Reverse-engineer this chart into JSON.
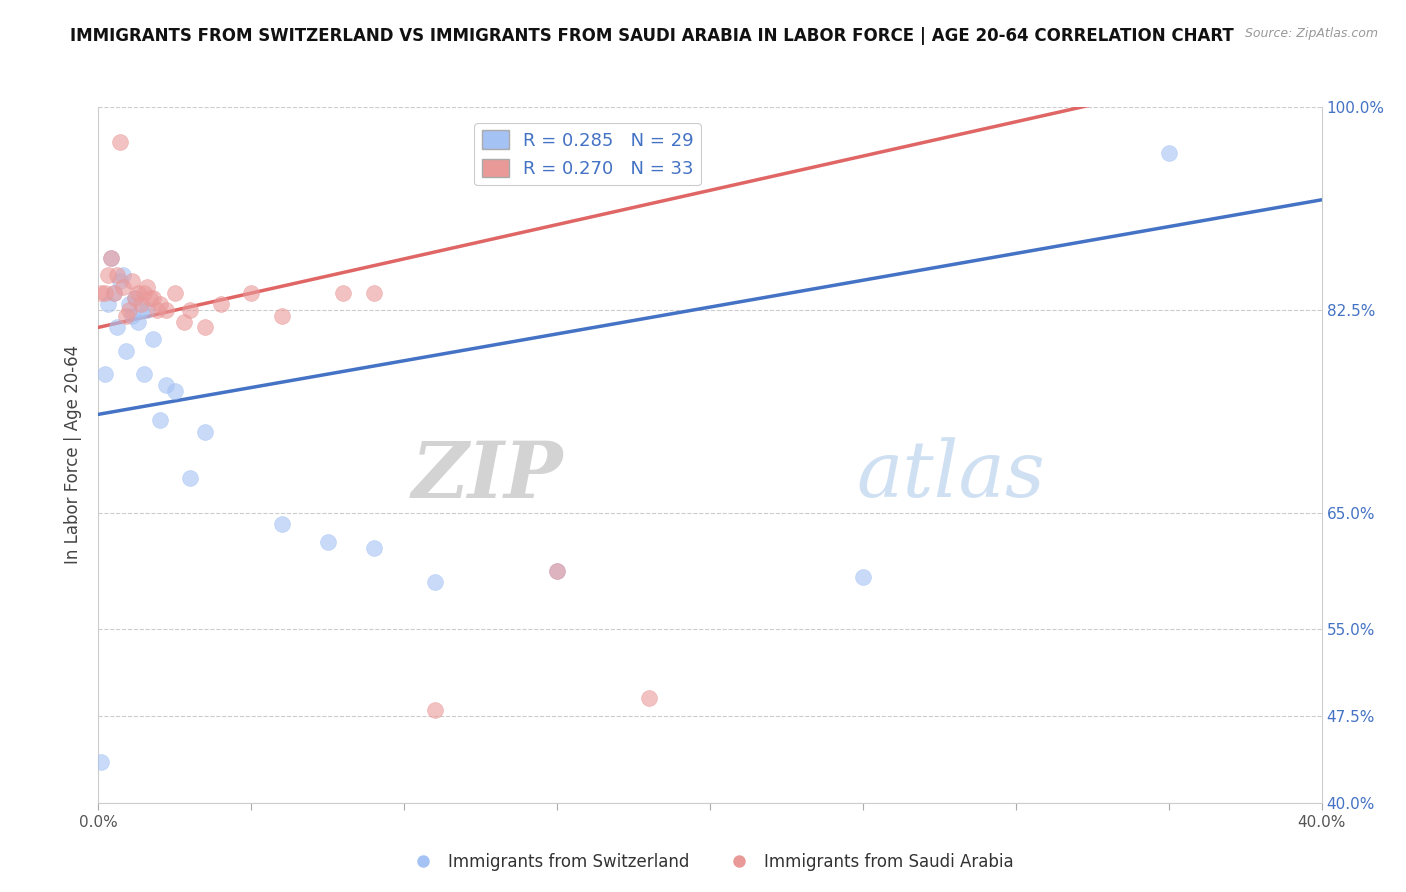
{
  "title": "IMMIGRANTS FROM SWITZERLAND VS IMMIGRANTS FROM SAUDI ARABIA IN LABOR FORCE | AGE 20-64 CORRELATION CHART",
  "source": "Source: ZipAtlas.com",
  "ylabel": "In Labor Force | Age 20-64",
  "xlim": [
    0.0,
    0.4
  ],
  "ylim": [
    0.4,
    1.0
  ],
  "ytick_vals": [
    0.4,
    0.475,
    0.55,
    0.65,
    0.825,
    1.0
  ],
  "ytick_labels": [
    "40.0%",
    "47.5%",
    "55.0%",
    "65.0%",
    "82.5%",
    "100.0%"
  ],
  "xtick_vals": [
    0.0,
    0.05,
    0.1,
    0.15,
    0.2,
    0.25,
    0.3,
    0.35,
    0.4
  ],
  "xtick_labels": [
    "0.0%",
    "",
    "",
    "",
    "",
    "",
    "",
    "",
    "40.0%"
  ],
  "switzerland_color": "#a4c2f4",
  "saudi_color": "#ea9999",
  "switzerland_line_color": "#4472c4",
  "saudi_line_color": "#e06666",
  "switzerland_R": 0.285,
  "switzerland_N": 29,
  "saudi_R": 0.27,
  "saudi_N": 33,
  "watermark_zip": "ZIP",
  "watermark_atlas": "atlas",
  "grid_color": "#cccccc",
  "background_color": "#ffffff",
  "title_fontsize": 12,
  "axis_label_fontsize": 12,
  "tick_fontsize": 11,
  "legend_fontsize": 13,
  "switzerland_x": [
    0.001,
    0.002,
    0.003,
    0.004,
    0.005,
    0.006,
    0.007,
    0.008,
    0.009,
    0.01,
    0.011,
    0.012,
    0.013,
    0.014,
    0.015,
    0.016,
    0.018,
    0.02,
    0.022,
    0.025,
    0.03,
    0.035,
    0.06,
    0.075,
    0.09,
    0.11,
    0.15,
    0.25,
    0.35
  ],
  "switzerland_y": [
    0.435,
    0.77,
    0.83,
    0.87,
    0.84,
    0.81,
    0.85,
    0.855,
    0.79,
    0.83,
    0.82,
    0.835,
    0.815,
    0.825,
    0.77,
    0.825,
    0.8,
    0.73,
    0.76,
    0.755,
    0.68,
    0.72,
    0.64,
    0.625,
    0.62,
    0.59,
    0.6,
    0.595,
    0.96
  ],
  "saudi_x": [
    0.001,
    0.002,
    0.003,
    0.004,
    0.005,
    0.006,
    0.007,
    0.008,
    0.009,
    0.01,
    0.011,
    0.012,
    0.013,
    0.014,
    0.015,
    0.016,
    0.017,
    0.018,
    0.019,
    0.02,
    0.022,
    0.025,
    0.028,
    0.03,
    0.035,
    0.04,
    0.05,
    0.06,
    0.08,
    0.09,
    0.11,
    0.15,
    0.18
  ],
  "saudi_y": [
    0.84,
    0.84,
    0.855,
    0.87,
    0.84,
    0.855,
    0.97,
    0.845,
    0.82,
    0.825,
    0.85,
    0.835,
    0.84,
    0.83,
    0.84,
    0.845,
    0.835,
    0.835,
    0.825,
    0.83,
    0.825,
    0.84,
    0.815,
    0.825,
    0.81,
    0.83,
    0.84,
    0.82,
    0.84,
    0.84,
    0.48,
    0.6,
    0.49
  ],
  "sw_line_x": [
    0.0,
    0.4
  ],
  "sw_line_y": [
    0.735,
    0.92
  ],
  "sa_line_x": [
    0.0,
    0.33
  ],
  "sa_line_y": [
    0.81,
    1.005
  ]
}
